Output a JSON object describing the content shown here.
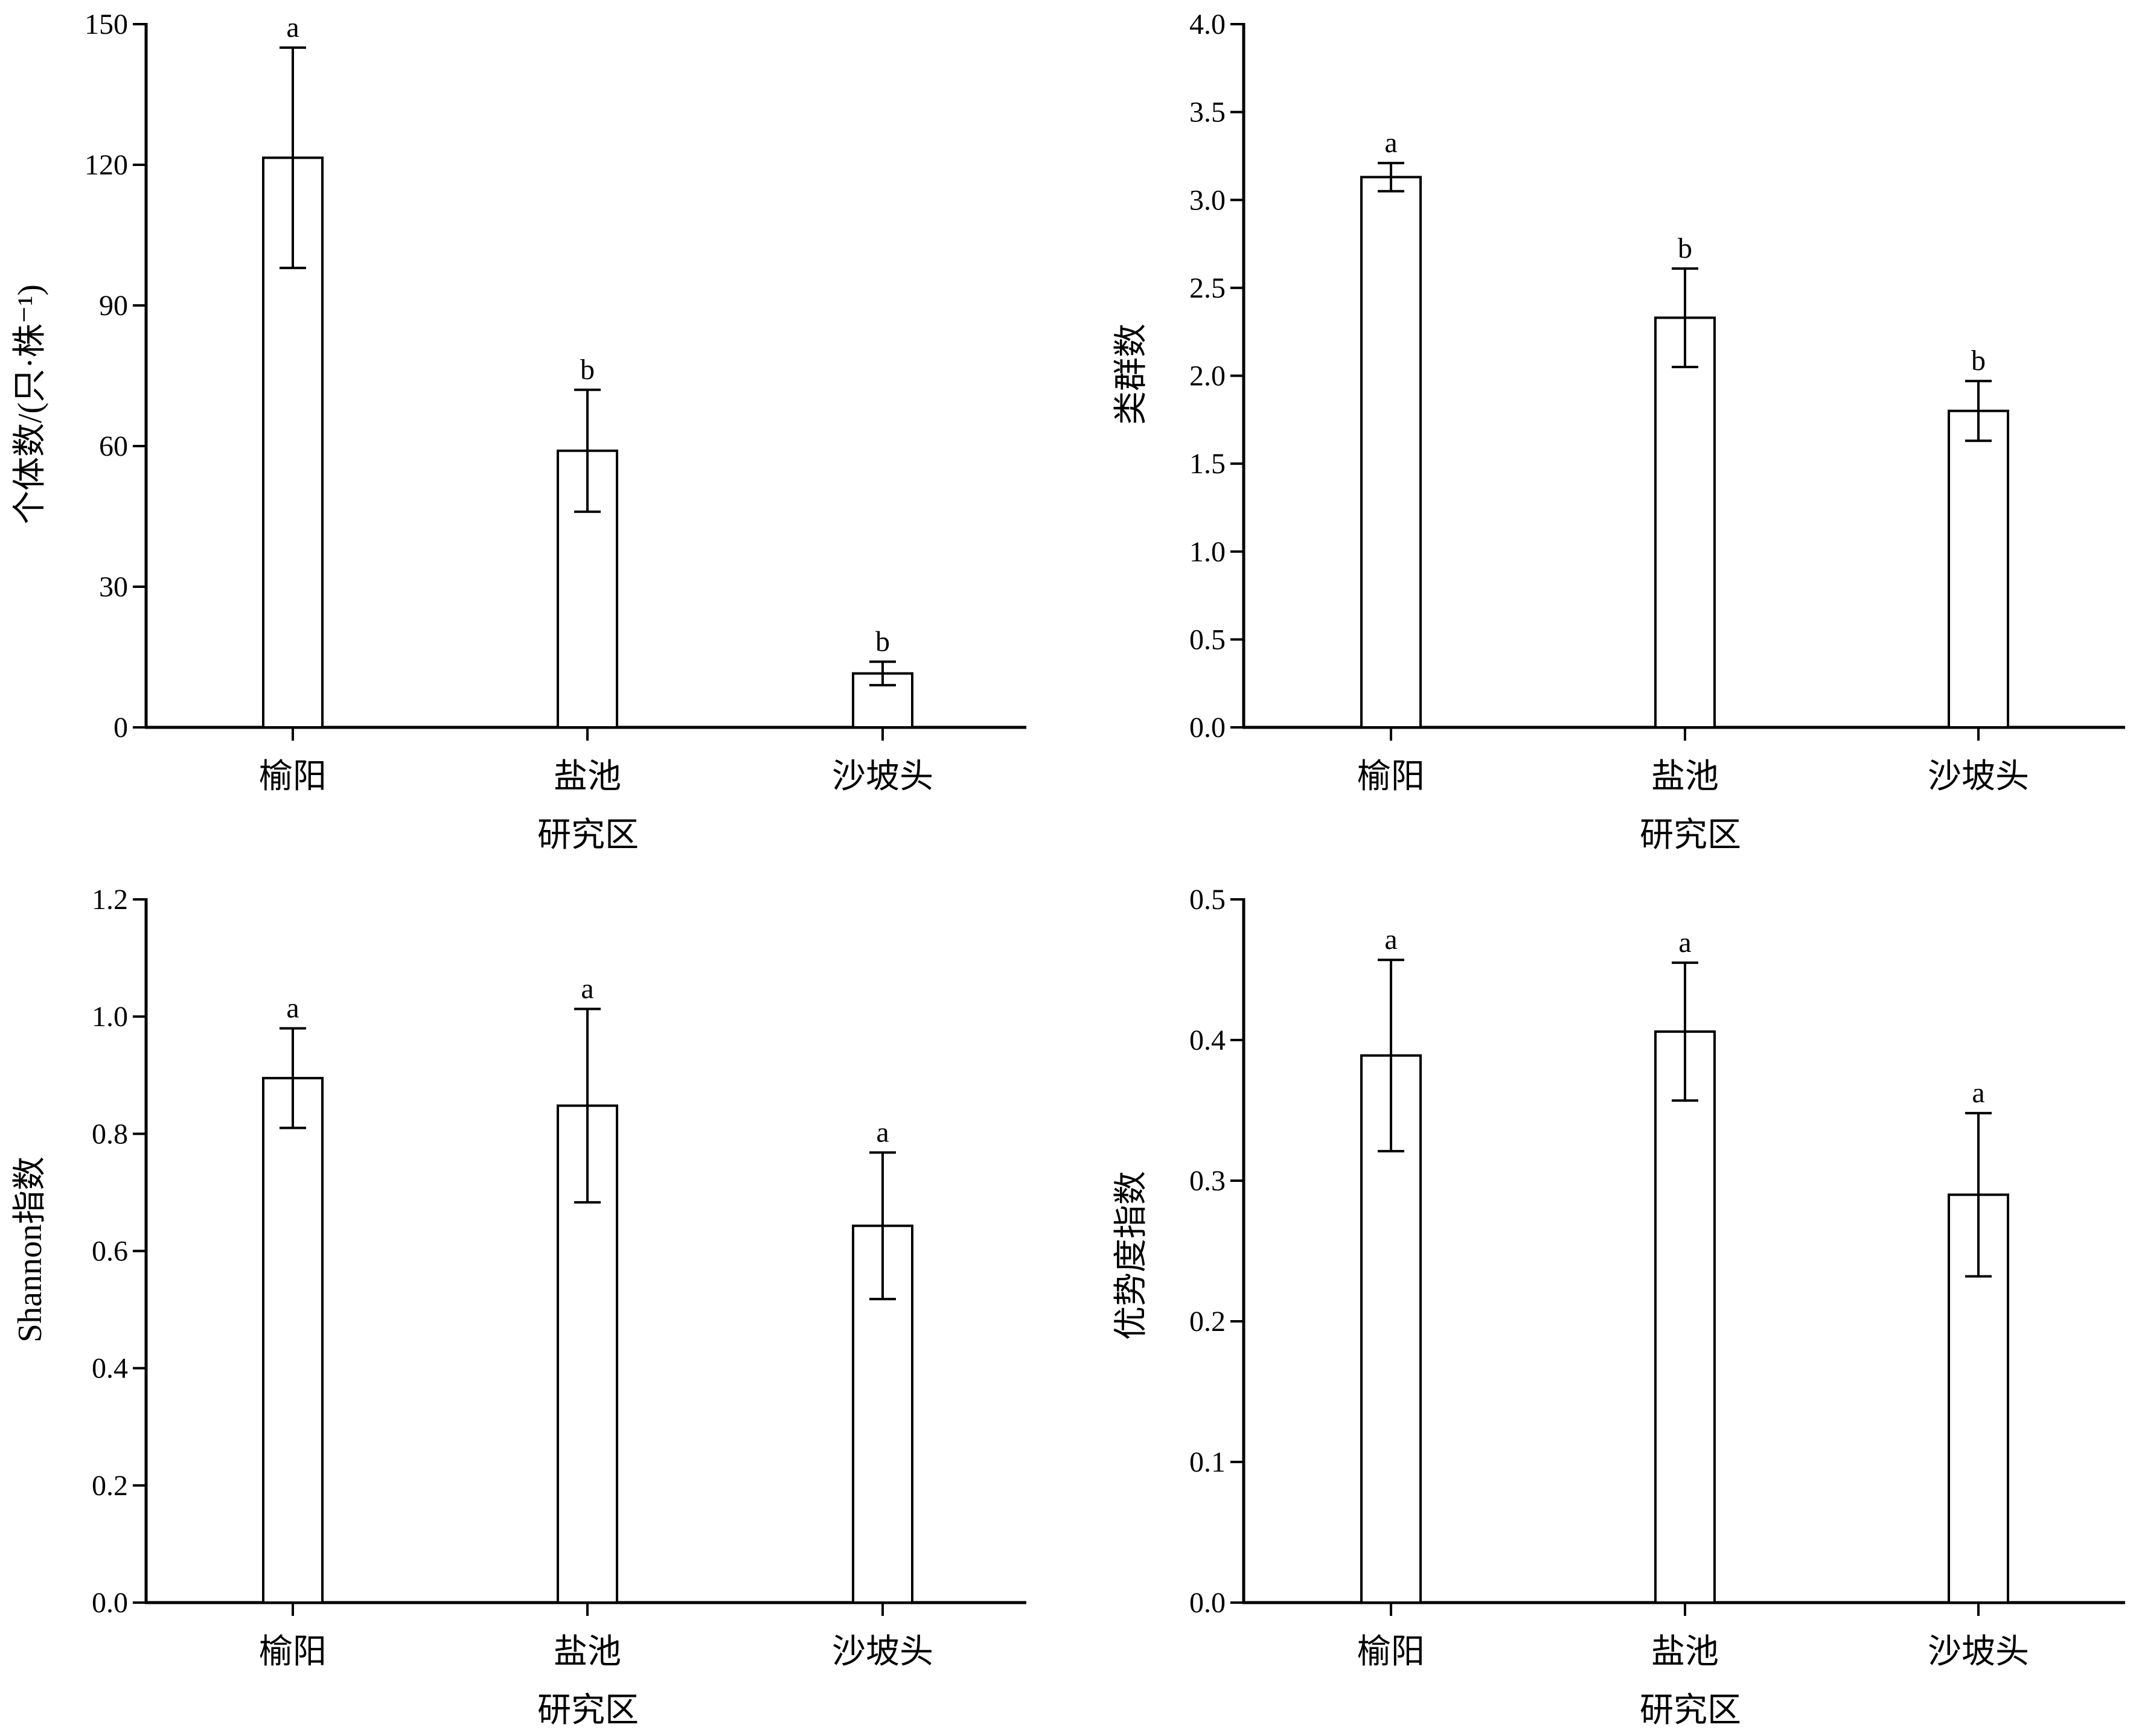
{
  "chart_data": [
    {
      "type": "bar",
      "xlabel": "研究区",
      "ylabel": "个体数/(只·株⁻¹)",
      "categories": [
        "榆阳",
        "盐池",
        "沙坡头"
      ],
      "values": [
        121.5,
        59,
        11.5
      ],
      "errors": [
        23.5,
        13,
        2.5
      ],
      "significance": [
        "a",
        "b",
        "b"
      ],
      "ylim": [
        0,
        150
      ],
      "yticks": [
        0,
        30,
        60,
        90,
        120,
        150
      ],
      "ytick_labels": [
        "0",
        "30",
        "60",
        "90",
        "120",
        "150"
      ],
      "grid": false,
      "legend": "none"
    },
    {
      "type": "bar",
      "xlabel": "研究区",
      "ylabel": "类群数",
      "categories": [
        "榆阳",
        "盐池",
        "沙坡头"
      ],
      "values": [
        3.13,
        2.33,
        1.8
      ],
      "errors": [
        0.08,
        0.28,
        0.17
      ],
      "significance": [
        "a",
        "b",
        "b"
      ],
      "ylim": [
        0,
        4.0
      ],
      "yticks": [
        0,
        0.5,
        1.0,
        1.5,
        2.0,
        2.5,
        3.0,
        3.5,
        4.0
      ],
      "ytick_labels": [
        "0.0",
        "0.5",
        "1.0",
        "1.5",
        "2.0",
        "2.5",
        "3.0",
        "3.5",
        "4.0"
      ],
      "grid": false,
      "legend": "none"
    },
    {
      "type": "bar",
      "xlabel": "研究区",
      "ylabel": "Shannon指数",
      "categories": [
        "榆阳",
        "盐池",
        "沙坡头"
      ],
      "values": [
        0.895,
        0.848,
        0.643
      ],
      "errors": [
        0.085,
        0.165,
        0.125
      ],
      "significance": [
        "a",
        "a",
        "a"
      ],
      "ylim": [
        0,
        1.2
      ],
      "yticks": [
        0,
        0.2,
        0.4,
        0.6,
        0.8,
        1.0,
        1.2
      ],
      "ytick_labels": [
        "0.0",
        "0.2",
        "0.4",
        "0.6",
        "0.8",
        "1.0",
        "1.2"
      ],
      "grid": false,
      "legend": "none"
    },
    {
      "type": "bar",
      "xlabel": "研究区",
      "ylabel": "优势度指数",
      "categories": [
        "榆阳",
        "盐池",
        "沙坡头"
      ],
      "values": [
        0.389,
        0.406,
        0.29
      ],
      "errors": [
        0.068,
        0.049,
        0.058
      ],
      "significance": [
        "a",
        "a",
        "a"
      ],
      "ylim": [
        0,
        0.5
      ],
      "yticks": [
        0,
        0.1,
        0.2,
        0.3,
        0.4,
        0.5
      ],
      "ytick_labels": [
        "0.0",
        "0.1",
        "0.2",
        "0.3",
        "0.4",
        "0.5"
      ],
      "grid": false,
      "legend": "none"
    }
  ]
}
